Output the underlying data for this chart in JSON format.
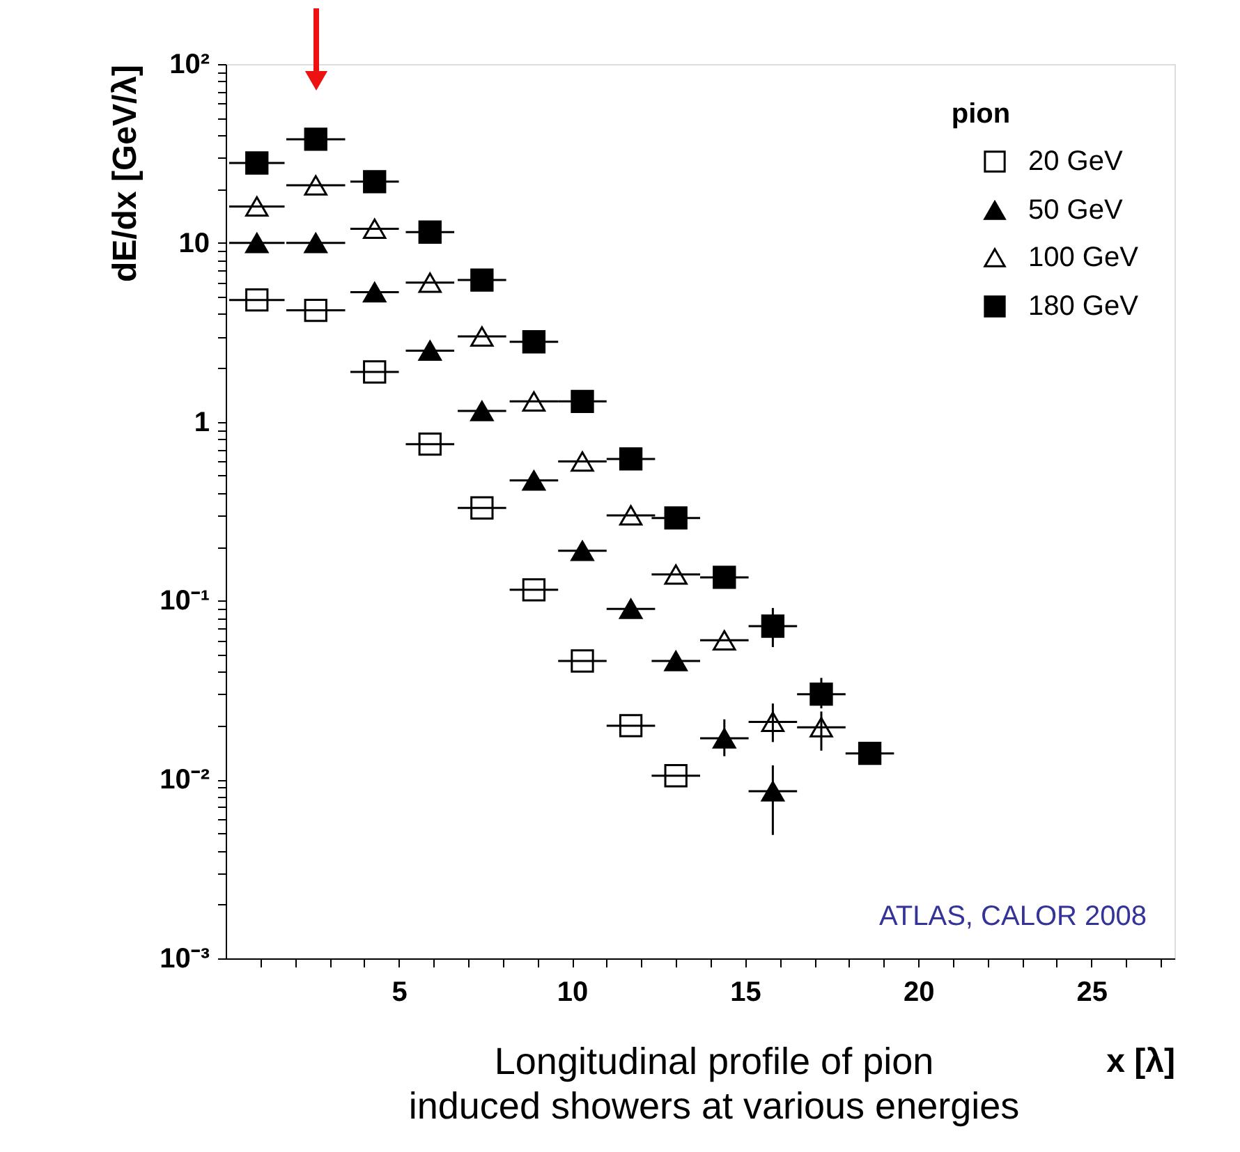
{
  "chart_data": {
    "type": "scatter",
    "xlabel": "x [λ]",
    "ylabel": "dE/dx [GeV/λ]",
    "legend_title": "pion",
    "legend": "top right",
    "log": "y",
    "xlim": [
      0,
      27.4
    ],
    "xticks": [
      {
        "value": 1,
        "label": null
      },
      {
        "value": 2,
        "label": null
      },
      {
        "value": 3,
        "label": null
      },
      {
        "value": 4,
        "label": null
      },
      5,
      {
        "value": 6,
        "label": null
      },
      {
        "value": 7,
        "label": null
      },
      {
        "value": 8,
        "label": null
      },
      {
        "value": 9,
        "label": null
      },
      10,
      {
        "value": 11,
        "label": null
      },
      {
        "value": 12,
        "label": null
      },
      {
        "value": 13,
        "label": null
      },
      {
        "value": 14,
        "label": null
      },
      15,
      {
        "value": 16,
        "label": null
      },
      {
        "value": 17,
        "label": null
      },
      {
        "value": 18,
        "label": null
      },
      {
        "value": 19,
        "label": null
      },
      20,
      {
        "value": 21,
        "label": null
      },
      {
        "value": 22,
        "label": null
      },
      {
        "value": 23,
        "label": null
      },
      {
        "value": 24,
        "label": null
      },
      25,
      {
        "value": 26,
        "label": null
      },
      {
        "value": 27,
        "label": null
      }
    ],
    "ylim": [
      0.001,
      100
    ],
    "yticks": [
      {
        "value": 0.001,
        "label": "10⁻³"
      },
      {
        "value": 0.002,
        "label": null
      },
      {
        "value": 0.003,
        "label": null
      },
      {
        "value": 0.004,
        "label": null
      },
      {
        "value": 0.005,
        "label": null
      },
      {
        "value": 0.006,
        "label": null
      },
      {
        "value": 0.007,
        "label": null
      },
      {
        "value": 0.008,
        "label": null
      },
      {
        "value": 0.009,
        "label": null
      },
      {
        "value": 0.01,
        "label": "10⁻²"
      },
      {
        "value": 0.02,
        "label": null
      },
      {
        "value": 0.03,
        "label": null
      },
      {
        "value": 0.04,
        "label": null
      },
      {
        "value": 0.05,
        "label": null
      },
      {
        "value": 0.06,
        "label": null
      },
      {
        "value": 0.07,
        "label": null
      },
      {
        "value": 0.08,
        "label": null
      },
      {
        "value": 0.09,
        "label": null
      },
      {
        "value": 0.1,
        "label": "10⁻¹"
      },
      {
        "value": 0.2,
        "label": null
      },
      {
        "value": 0.3,
        "label": null
      },
      {
        "value": 0.4,
        "label": null
      },
      {
        "value": 0.5,
        "label": null
      },
      {
        "value": 0.6,
        "label": null
      },
      {
        "value": 0.7,
        "label": null
      },
      {
        "value": 0.8,
        "label": null
      },
      {
        "value": 0.9,
        "label": null
      },
      1,
      {
        "value": 2,
        "label": null
      },
      {
        "value": 3,
        "label": null
      },
      {
        "value": 4,
        "label": null
      },
      {
        "value": 5,
        "label": null
      },
      {
        "value": 6,
        "label": null
      },
      {
        "value": 7,
        "label": null
      },
      {
        "value": 8,
        "label": null
      },
      {
        "value": 9,
        "label": null
      },
      10,
      {
        "value": 20,
        "label": null
      },
      {
        "value": 30,
        "label": null
      },
      {
        "value": 40,
        "label": null
      },
      {
        "value": 50,
        "label": null
      },
      {
        "value": 60,
        "label": null
      },
      {
        "value": 70,
        "label": null
      },
      {
        "value": 80,
        "label": null
      },
      {
        "value": 90,
        "label": null
      },
      {
        "value": 100,
        "label": "10²"
      }
    ],
    "series": [
      {
        "name": "20 GeV",
        "color": "#000000",
        "marker": "square",
        "x": [
          0.9,
          2.6,
          4.3,
          5.9,
          7.4,
          8.9,
          10.3,
          11.7,
          13.0
        ],
        "values": [
          4.8,
          4.2,
          1.9,
          0.75,
          0.33,
          0.115,
          0.046,
          0.02,
          0.0105
        ],
        "xerrors": [
          0.8,
          0.85,
          0.7,
          0.7,
          0.7,
          0.7,
          0.7,
          0.7,
          0.7
        ],
        "errors": [
          null,
          null,
          null,
          null,
          null,
          null,
          null,
          null,
          null
        ]
      },
      {
        "name": "50 GeV",
        "color": "#000000",
        "marker": "triangle",
        "x": [
          0.9,
          2.6,
          4.3,
          5.9,
          7.4,
          8.9,
          10.3,
          11.7,
          13.0,
          14.4,
          15.8
        ],
        "values": [
          10,
          10,
          5.3,
          2.5,
          1.15,
          0.47,
          0.19,
          0.09,
          0.046,
          0.017,
          0.0086
        ],
        "xerrors": [
          0.8,
          0.85,
          0.7,
          0.7,
          0.7,
          0.7,
          0.7,
          0.7,
          0.7,
          0.7,
          0.7
        ],
        "errors": [
          null,
          null,
          null,
          null,
          null,
          null,
          null,
          null,
          null,
          [
            0.0135,
            0.0217
          ],
          [
            0.0049,
            0.012
          ]
        ]
      },
      {
        "name": "100 GeV",
        "color": "#000000",
        "marker": "triangle",
        "x": [
          0.9,
          2.6,
          4.3,
          5.9,
          7.4,
          8.9,
          10.3,
          11.7,
          13.0,
          14.4,
          15.8,
          17.2
        ],
        "values": [
          16,
          21,
          12,
          6,
          3,
          1.3,
          0.6,
          0.3,
          0.14,
          0.06,
          0.021,
          0.0196
        ],
        "xerrors": [
          0.8,
          0.85,
          0.7,
          0.7,
          0.7,
          0.7,
          0.7,
          0.7,
          0.7,
          0.7,
          0.7,
          0.7
        ],
        "errors": [
          null,
          null,
          null,
          null,
          null,
          null,
          null,
          null,
          null,
          null,
          [
            0.0162,
            0.0266
          ],
          [
            0.0145,
            0.024
          ]
        ]
      },
      {
        "name": "180 GeV",
        "color": "#000000",
        "marker": "square",
        "x": [
          0.9,
          2.6,
          4.3,
          5.9,
          7.4,
          8.9,
          10.3,
          11.7,
          13.0,
          14.4,
          15.8,
          17.2,
          18.6
        ],
        "values": [
          28,
          38,
          22,
          11.5,
          6.2,
          2.8,
          1.3,
          0.62,
          0.29,
          0.135,
          0.072,
          0.03,
          0.014
        ],
        "xerrors": [
          0.8,
          0.85,
          0.7,
          0.7,
          0.7,
          0.7,
          0.7,
          0.7,
          0.7,
          0.7,
          0.7,
          0.7,
          0.7
        ],
        "errors": [
          null,
          null,
          null,
          null,
          null,
          null,
          null,
          null,
          null,
          null,
          [
            0.055,
            0.091
          ],
          [
            0.025,
            0.037
          ],
          null
        ]
      }
    ],
    "annotations": [
      "ATLAS, CALOR 2008",
      "Longitudinal profile of pion\ninduced showers at various energies"
    ]
  }
}
